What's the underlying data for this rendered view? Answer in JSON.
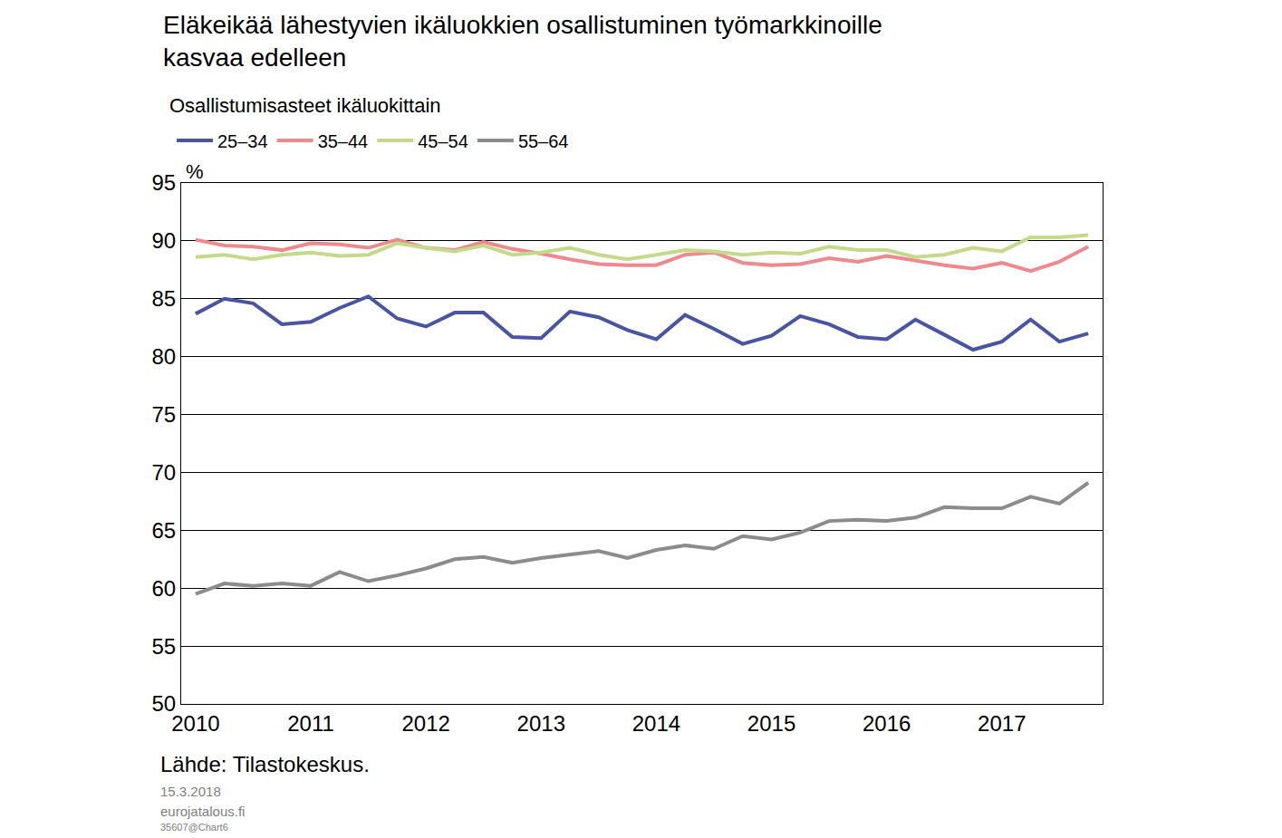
{
  "chart_data": {
    "type": "line",
    "title": "Eläkeikää lähestyvien ikäluokkien osallistuminen työmarkkinoille\nkasvaa edelleen",
    "subtitle": "Osallistumisasteet ikäluokittain",
    "y_label": "%",
    "source": "Lähde: Tilastokeskus.",
    "footer": [
      "15.3.2018",
      "eurojatalous.fi",
      "35607@Chart6"
    ],
    "categories": [
      "2010",
      null,
      null,
      null,
      "2011",
      null,
      null,
      null,
      "2012",
      null,
      null,
      null,
      "2013",
      null,
      null,
      null,
      "2014",
      null,
      null,
      null,
      "2015",
      null,
      null,
      null,
      "2016",
      null,
      null,
      null,
      "2017",
      null,
      null,
      null
    ],
    "series": [
      {
        "name": "25–34",
        "color": "#4a55a2",
        "values": [
          83.7,
          85.0,
          84.6,
          82.8,
          83.0,
          84.2,
          85.2,
          83.3,
          82.6,
          83.8,
          83.8,
          81.7,
          81.6,
          83.9,
          83.4,
          82.3,
          81.5,
          83.6,
          82.4,
          81.1,
          81.8,
          83.5,
          82.8,
          81.7,
          81.5,
          83.2,
          81.9,
          80.6,
          81.3,
          83.2,
          81.3,
          82.0
        ]
      },
      {
        "name": "35–44",
        "color": "#ee8a8e",
        "values": [
          90.1,
          89.6,
          89.5,
          89.2,
          89.8,
          89.7,
          89.4,
          90.1,
          89.4,
          89.2,
          89.9,
          89.3,
          88.9,
          88.4,
          88.0,
          87.9,
          87.9,
          88.8,
          89.0,
          88.1,
          87.9,
          88.0,
          88.5,
          88.2,
          88.7,
          88.3,
          87.9,
          87.6,
          88.1,
          87.4,
          88.2,
          89.5
        ]
      },
      {
        "name": "45–54",
        "color": "#c5d98a",
        "values": [
          88.6,
          88.8,
          88.4,
          88.8,
          89.0,
          88.7,
          88.8,
          89.8,
          89.4,
          89.1,
          89.6,
          88.8,
          89.0,
          89.4,
          88.8,
          88.4,
          88.8,
          89.2,
          89.1,
          88.8,
          89.0,
          88.9,
          89.5,
          89.2,
          89.2,
          88.6,
          88.8,
          89.4,
          89.1,
          90.3,
          90.3,
          90.5
        ]
      },
      {
        "name": "55–64",
        "color": "#8c8c8c",
        "values": [
          59.5,
          60.4,
          60.2,
          60.4,
          60.2,
          61.4,
          60.6,
          61.1,
          61.7,
          62.5,
          62.7,
          62.2,
          62.6,
          62.9,
          63.2,
          62.6,
          63.3,
          63.7,
          63.4,
          64.5,
          64.2,
          64.8,
          65.8,
          65.9,
          65.8,
          66.1,
          67.0,
          66.9,
          66.9,
          67.9,
          67.3,
          69.1
        ]
      }
    ],
    "ylim": [
      50,
      95
    ],
    "yticks": [
      50,
      55,
      60,
      65,
      70,
      75,
      80,
      85,
      90,
      95
    ],
    "grid": true,
    "legend": "top"
  }
}
